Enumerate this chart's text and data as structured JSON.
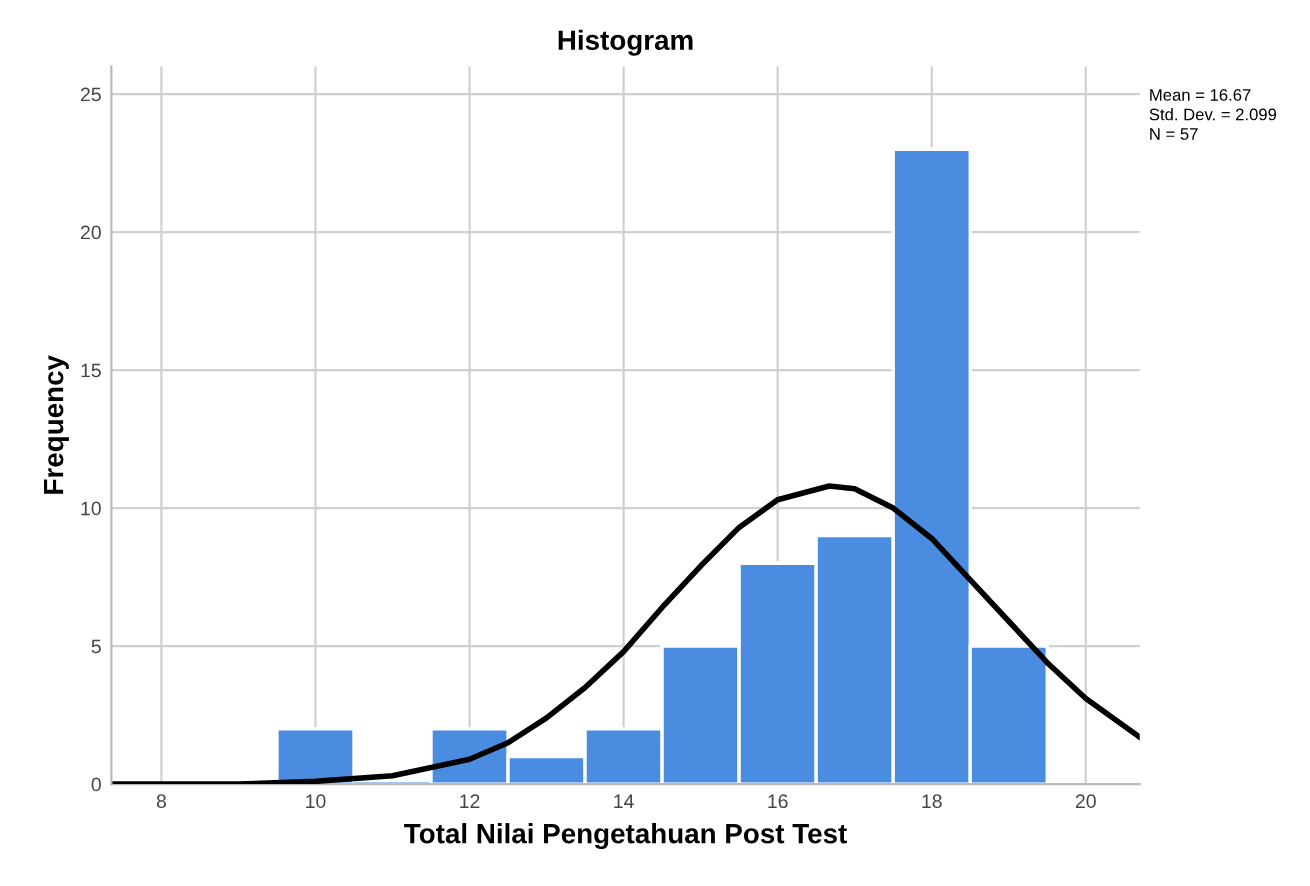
{
  "chart_data": {
    "type": "histogram",
    "title": "Histogram",
    "xlabel": "Total Nilai Pengetahuan Post Test",
    "ylabel": "Frequency",
    "bins": [
      9.5,
      10.5,
      11.5,
      12.5,
      13.5,
      14.5,
      15.5,
      16.5,
      17.5,
      18.5,
      19.5
    ],
    "values": [
      2,
      0,
      2,
      1,
      2,
      5,
      8,
      9,
      23,
      5
    ],
    "color": "#4a8de0",
    "series": [
      {
        "type": "line",
        "color": "#000000",
        "x": [
          7.4,
          9,
          10,
          11,
          12,
          12.5,
          13,
          13.5,
          14,
          14.5,
          15,
          15.5,
          16,
          16.67,
          17,
          17.5,
          18,
          18.5,
          19,
          19.5,
          20,
          20.7
        ],
        "values": [
          0.0,
          0.0,
          0.1,
          0.3,
          0.9,
          1.5,
          2.4,
          3.5,
          4.8,
          6.4,
          7.9,
          9.3,
          10.3,
          10.8,
          10.7,
          10.0,
          8.9,
          7.4,
          5.9,
          4.4,
          3.1,
          1.7
        ]
      }
    ],
    "xlim": [
      7.35,
      20.7
    ],
    "xticks": [
      8,
      10,
      12,
      14,
      16,
      18,
      20
    ],
    "ylim": [
      0,
      26
    ],
    "yticks": [
      0,
      5,
      10,
      15,
      20,
      25
    ],
    "grid": true,
    "annotations": [
      "Mean = 16.67",
      "Std. Dev. = 2.099",
      "N = 57"
    ]
  }
}
